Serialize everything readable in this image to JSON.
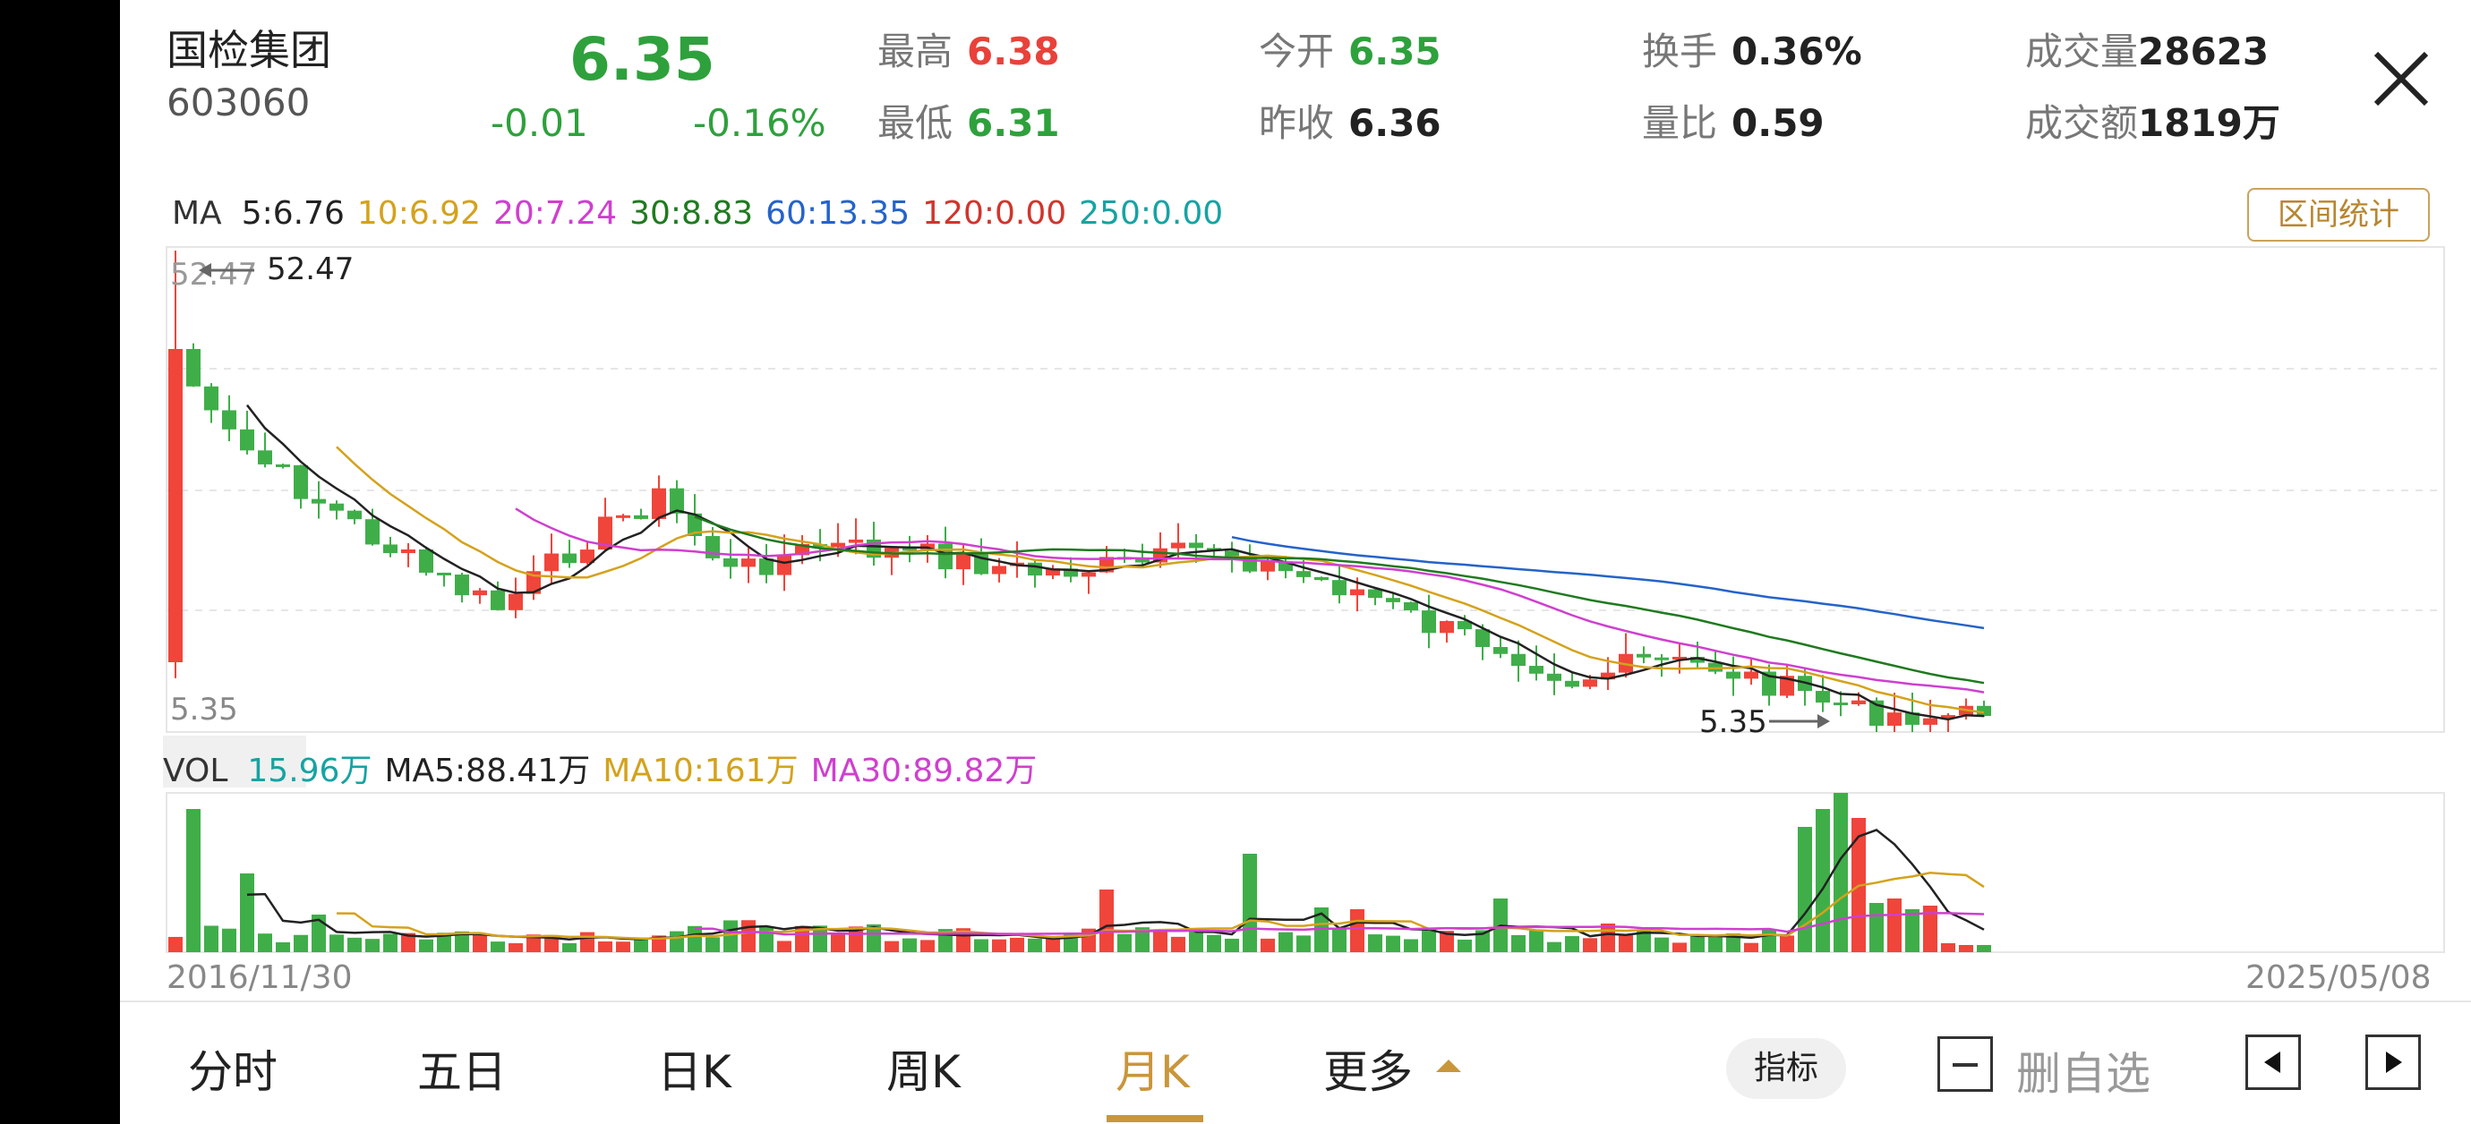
{
  "stock": {
    "name": "国检集团",
    "code": "603060",
    "price": "6.35",
    "change": "-0.01",
    "change_pct": "-0.16%"
  },
  "stats": [
    {
      "label": "最高",
      "value": "6.38",
      "color": "#e8423a"
    },
    {
      "label": "最低",
      "value": "6.31",
      "color": "#2ea13c"
    },
    {
      "label": "今开",
      "value": "6.35",
      "color": "#2ea13c"
    },
    {
      "label": "昨收",
      "value": "6.36",
      "color": "#222222"
    },
    {
      "label": "换手",
      "value": "0.36%",
      "color": "#222222"
    },
    {
      "label": "量比",
      "value": "0.59",
      "color": "#222222"
    },
    {
      "label": "成交量",
      "value": "28623",
      "color": "#222222"
    },
    {
      "label": "成交额",
      "value": "1819万",
      "color": "#222222"
    }
  ],
  "ma_legend": {
    "label": "MA",
    "items": [
      {
        "text": "5:6.76",
        "color": "#222222"
      },
      {
        "text": "10:6.92",
        "color": "#d4a21c"
      },
      {
        "text": "20:7.24",
        "color": "#cf3fcf"
      },
      {
        "text": "30:8.83",
        "color": "#1f7a1f"
      },
      {
        "text": "60:13.35",
        "color": "#2563c9"
      },
      {
        "text": "120:0.00",
        "color": "#d0352c"
      },
      {
        "text": "250:0.00",
        "color": "#16a3a3"
      }
    ]
  },
  "range_button": "区间统计",
  "chart_labels": {
    "high_left": "52.47",
    "high_mark": "52.47",
    "low_left": "5.35",
    "low_mark": "5.35"
  },
  "vol_legend": {
    "label": "VOL",
    "items": [
      {
        "text": "15.96万",
        "color": "#16a3a3"
      },
      {
        "text": "MA5:88.41万",
        "color": "#222222"
      },
      {
        "text": "MA10:161万",
        "color": "#d4a21c"
      },
      {
        "text": "MA30:89.82万",
        "color": "#cf3fcf"
      }
    ]
  },
  "dates": {
    "start": "2016/11/30",
    "end": "2025/05/08"
  },
  "tabs": [
    "分时",
    "五日",
    "日K",
    "周K",
    "月K",
    "更多"
  ],
  "active_tab": "月K",
  "indicator_button": "指标",
  "watchlist_label": "删自选",
  "colors": {
    "up": "#f0453a",
    "down": "#3fae49",
    "accent": "#c9963b"
  },
  "chart_data": {
    "type": "candlestick",
    "interval": "monthly",
    "ylim": [
      5.35,
      52.47
    ],
    "price_high": 52.47,
    "price_low": 5.35,
    "ma_lines": [
      "MA5",
      "MA10",
      "MA20",
      "MA30",
      "MA60"
    ],
    "volume_ma": [
      "MA5",
      "MA10",
      "MA30"
    ]
  }
}
